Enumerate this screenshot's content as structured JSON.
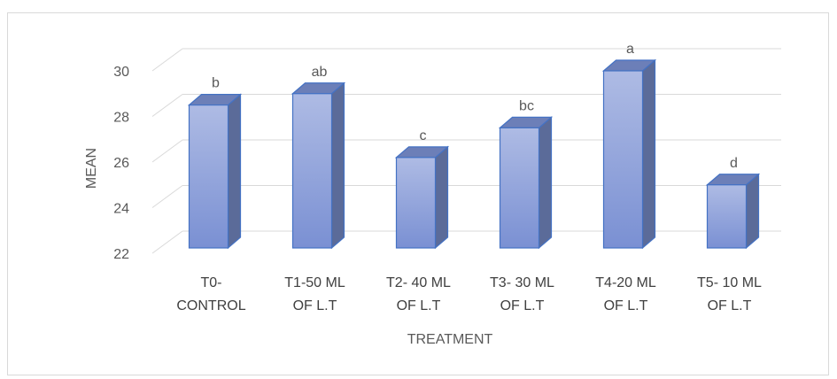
{
  "chart_data": {
    "type": "bar",
    "categories": [
      [
        "T0-",
        "CONTROL"
      ],
      [
        "T1-50 ML",
        "OF L.T"
      ],
      [
        "T2- 40 ML",
        "OF L.T"
      ],
      [
        "T3- 30 ML",
        "OF L.T"
      ],
      [
        "T4-20 ML",
        "OF L.T"
      ],
      [
        "T5- 10 ML",
        "OF L.T"
      ]
    ],
    "values": [
      28.5,
      29.0,
      26.2,
      27.5,
      30.0,
      25.0
    ],
    "data_labels": [
      "b",
      "ab",
      "c",
      "bc",
      "a",
      "d"
    ],
    "xlabel": "TREATMENT",
    "ylabel": "MEAN",
    "ylim": [
      22,
      30
    ],
    "yticks": [
      "22",
      "24",
      "26",
      "28",
      "30"
    ],
    "grid": true,
    "style": "3d-column",
    "colors": {
      "bar_front_top": "#aebbe4",
      "bar_front_bottom": "#7a90d3",
      "bar_side": "#5b6b99",
      "bar_top": "#6c7fb8",
      "bar_edge": "#4472c4",
      "gridline": "#d9d9d9"
    }
  }
}
